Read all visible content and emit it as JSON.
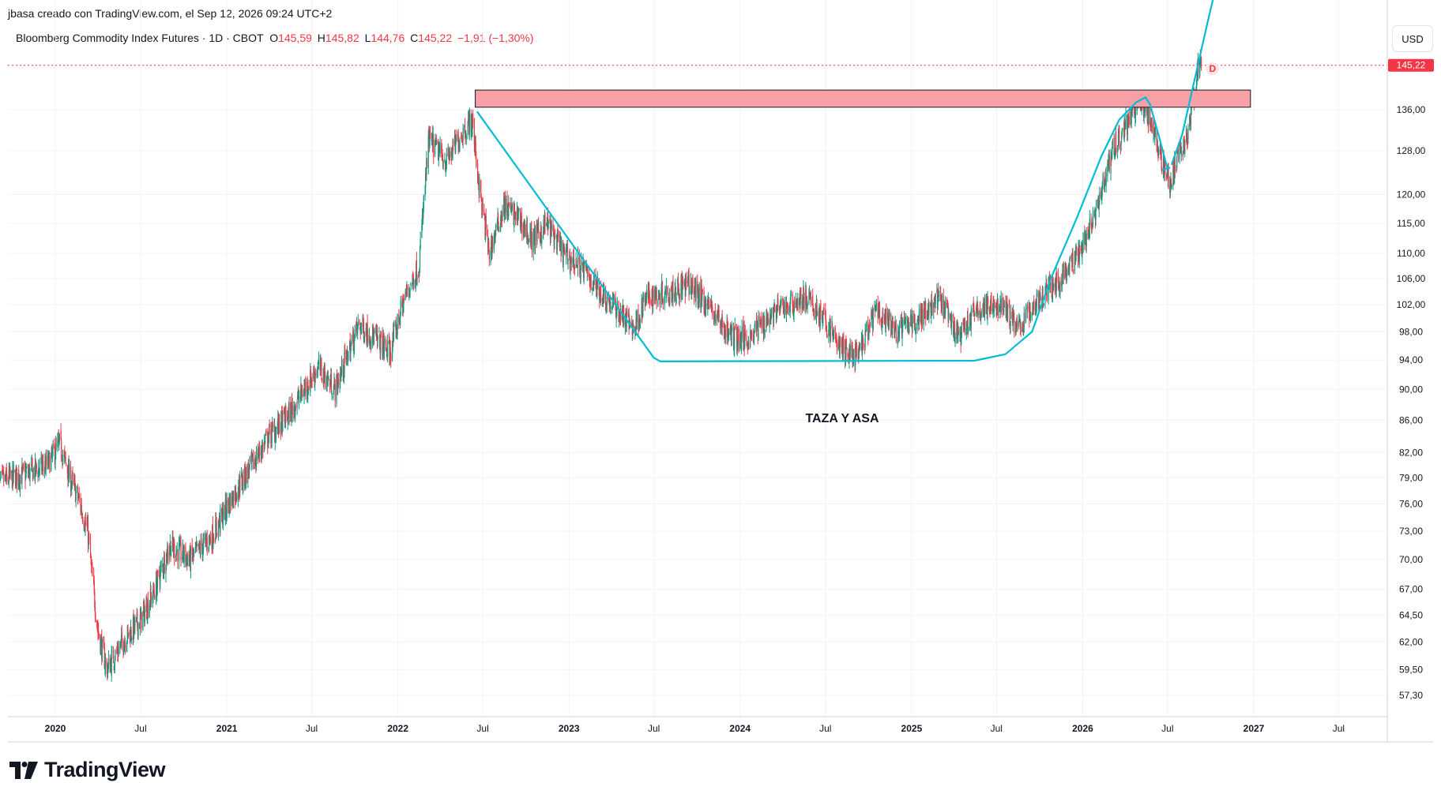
{
  "header": "jbasa creado con TradingView.com, el Sep 12, 2026 09:24 UTC+2",
  "legend": {
    "symbol": "Bloomberg Commodity Index Futures · 1D · CBOT",
    "o_label": "O",
    "o": "145,59",
    "h_label": "H",
    "h": "145,82",
    "l_label": "L",
    "l": "144,76",
    "c_label": "C",
    "c": "145,22",
    "change": "−1,91 (−1,30%)"
  },
  "currency": "USD",
  "last_price_label": "145,22",
  "logo_text": "TradingView",
  "colors": {
    "up": "#089981",
    "down": "#f23645",
    "pattern": "#00bcd4",
    "zone_fill": "#f7a1a7",
    "grid": "#f0f3fa"
  },
  "chart_data": {
    "type": "candlestick",
    "scale": "log",
    "y_ticks": [
      136,
      128,
      120,
      115,
      110,
      106,
      102,
      98,
      94,
      90,
      86,
      82,
      79,
      76,
      73,
      70,
      67,
      64.5,
      62,
      59.5,
      57.3
    ],
    "y_tick_labels": [
      "136,00",
      "128,00",
      "120,00",
      "115,00",
      "110,00",
      "106,00",
      "102,00",
      "98,00",
      "94,00",
      "90,00",
      "86,00",
      "82,00",
      "79,00",
      "76,00",
      "73,00",
      "70,00",
      "67,00",
      "64,50",
      "62,00",
      "59,50",
      "57,30"
    ],
    "x_ticks": [
      {
        "t": "2020-01-01",
        "label": "2020"
      },
      {
        "t": "2020-07-01",
        "label": "Jul"
      },
      {
        "t": "2021-01-01",
        "label": "2021"
      },
      {
        "t": "2021-07-01",
        "label": "Jul"
      },
      {
        "t": "2022-01-01",
        "label": "2022"
      },
      {
        "t": "2022-07-01",
        "label": "Jul"
      },
      {
        "t": "2023-01-01",
        "label": "2023"
      },
      {
        "t": "2023-07-01",
        "label": "Jul"
      },
      {
        "t": "2024-01-01",
        "label": "2024"
      },
      {
        "t": "2024-07-01",
        "label": "Jul"
      },
      {
        "t": "2025-01-01",
        "label": "2025"
      },
      {
        "t": "2025-07-01",
        "label": "Jul"
      },
      {
        "t": "2026-01-01",
        "label": "2026"
      },
      {
        "t": "2026-07-01",
        "label": "Jul"
      },
      {
        "t": "2027-01-01",
        "label": "2027"
      },
      {
        "t": "2027-07-01",
        "label": "Jul"
      }
    ],
    "price_path": [
      [
        "2019-09-01",
        78.5
      ],
      [
        "2019-11-01",
        79.5
      ],
      [
        "2019-12-15",
        80.5
      ],
      [
        "2020-01-10",
        83
      ],
      [
        "2020-02-01",
        79
      ],
      [
        "2020-02-20",
        76.5
      ],
      [
        "2020-03-10",
        73
      ],
      [
        "2020-03-20",
        68
      ],
      [
        "2020-04-01",
        63
      ],
      [
        "2020-04-20",
        59.5
      ],
      [
        "2020-05-10",
        61
      ],
      [
        "2020-06-01",
        62.5
      ],
      [
        "2020-07-01",
        64
      ],
      [
        "2020-08-01",
        67
      ],
      [
        "2020-09-01",
        71.5
      ],
      [
        "2020-10-15",
        70
      ],
      [
        "2020-12-01",
        72.5
      ],
      [
        "2021-01-15",
        77
      ],
      [
        "2021-03-01",
        81
      ],
      [
        "2021-04-01",
        84
      ],
      [
        "2021-05-10",
        86.5
      ],
      [
        "2021-06-15",
        90
      ],
      [
        "2021-07-15",
        93
      ],
      [
        "2021-08-20",
        90
      ],
      [
        "2021-10-10",
        99
      ],
      [
        "2021-11-15",
        97
      ],
      [
        "2021-12-15",
        95
      ],
      [
        "2022-01-15",
        103
      ],
      [
        "2022-02-15",
        108
      ],
      [
        "2022-03-08",
        130
      ],
      [
        "2022-04-15",
        126
      ],
      [
        "2022-05-15",
        131
      ],
      [
        "2022-06-08",
        134
      ],
      [
        "2022-06-25",
        120
      ],
      [
        "2022-07-15",
        110
      ],
      [
        "2022-08-15",
        118
      ],
      [
        "2022-09-15",
        116
      ],
      [
        "2022-10-15",
        112
      ],
      [
        "2022-11-15",
        115
      ],
      [
        "2022-12-20",
        110
      ],
      [
        "2023-01-25",
        108
      ],
      [
        "2023-03-20",
        103
      ],
      [
        "2023-05-20",
        98.5
      ],
      [
        "2023-06-15",
        103
      ],
      [
        "2023-07-25",
        104
      ],
      [
        "2023-09-15",
        105
      ],
      [
        "2023-10-25",
        102
      ],
      [
        "2023-12-10",
        97.5
      ],
      [
        "2024-01-15",
        97
      ],
      [
        "2024-03-15",
        101
      ],
      [
        "2024-05-20",
        103
      ],
      [
        "2024-06-15",
        101
      ],
      [
        "2024-08-05",
        95.5
      ],
      [
        "2024-09-10",
        94.5
      ],
      [
        "2024-10-15",
        101
      ],
      [
        "2024-12-01",
        98
      ],
      [
        "2025-01-15",
        100
      ],
      [
        "2025-03-01",
        103
      ],
      [
        "2025-04-10",
        97
      ],
      [
        "2025-05-15",
        101
      ],
      [
        "2025-07-15",
        102
      ],
      [
        "2025-08-15",
        98.5
      ],
      [
        "2025-10-01",
        103
      ],
      [
        "2025-11-15",
        106
      ],
      [
        "2025-12-25",
        110
      ],
      [
        "2026-02-01",
        118
      ],
      [
        "2026-03-01",
        127
      ],
      [
        "2026-04-10",
        134
      ],
      [
        "2026-05-01",
        138
      ],
      [
        "2026-05-25",
        134
      ],
      [
        "2026-06-20",
        126
      ],
      [
        "2026-07-05",
        122
      ],
      [
        "2026-07-20",
        126
      ],
      [
        "2026-08-10",
        130
      ],
      [
        "2026-08-25",
        138
      ],
      [
        "2026-09-05",
        146
      ],
      [
        "2026-09-11",
        145.22
      ]
    ],
    "last_price": 145.22,
    "resistance_zone": {
      "start": "2022-06-15",
      "end": "2026-12-25",
      "low": 136.5,
      "high": 140
    },
    "cup_curve": [
      [
        "2022-06-20",
        135.5
      ],
      [
        "2023-07-01",
        94.3
      ],
      [
        "2023-07-15",
        93.8
      ],
      [
        "2025-05-15",
        93.9
      ],
      [
        "2025-07-20",
        94.8
      ],
      [
        "2025-09-15",
        98
      ],
      [
        "2025-10-25",
        106
      ],
      [
        "2025-12-20",
        116
      ],
      [
        "2026-02-10",
        127
      ],
      [
        "2026-03-20",
        134
      ],
      [
        "2026-04-25",
        137.5
      ],
      [
        "2026-05-15",
        138.5
      ]
    ],
    "handle_loop": [
      [
        "2026-05-15",
        138.5
      ],
      [
        "2026-05-25",
        137
      ],
      [
        "2026-06-15",
        130
      ],
      [
        "2026-06-30",
        125
      ]
    ],
    "handle_exit": [
      [
        "2026-06-20",
        124.5
      ],
      [
        "2026-07-05",
        124.8
      ]
    ],
    "breakout_curve": [
      [
        "2026-07-10",
        125.5
      ],
      [
        "2026-08-01",
        131
      ],
      [
        "2026-08-25",
        141
      ],
      [
        "2026-09-25",
        155
      ],
      [
        "2026-10-10",
        162
      ]
    ],
    "annotation": "TAZA Y ASA",
    "marker": "D"
  }
}
